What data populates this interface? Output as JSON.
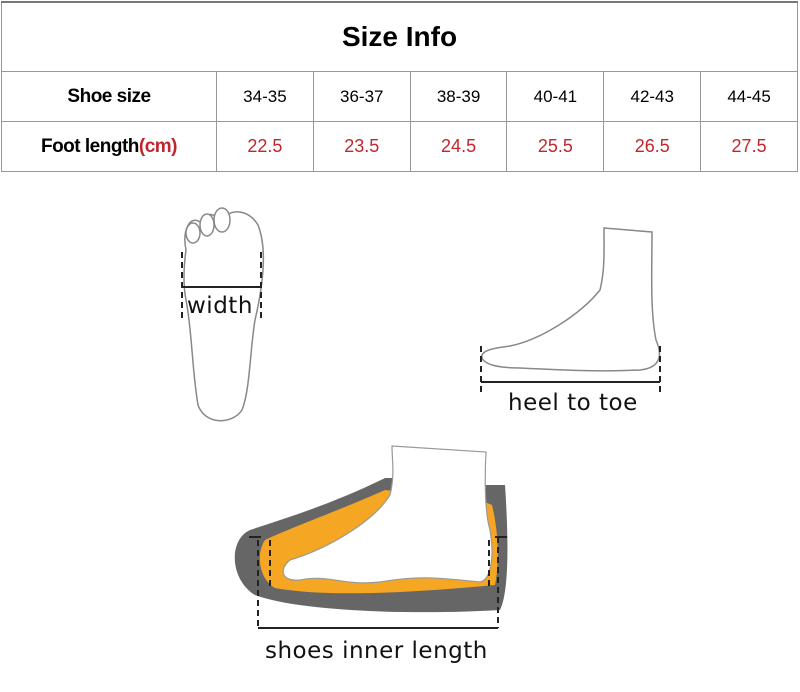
{
  "table": {
    "title": "Size Info",
    "row_labels": {
      "shoe_size": "Shoe size",
      "foot_length": "Foot length",
      "foot_length_unit": "(cm)"
    },
    "shoe_sizes": [
      "34-35",
      "36-37",
      "38-39",
      "40-41",
      "42-43",
      "44-45"
    ],
    "foot_lengths": [
      "22.5",
      "23.5",
      "24.5",
      "25.5",
      "26.5",
      "27.5"
    ]
  },
  "diagrams": {
    "width_label": "width",
    "heel_label": "heel to toe",
    "inner_label": "shoes inner length"
  },
  "colors": {
    "accent_red": "#c0272d",
    "insole_orange": "#f5a623",
    "sole_gray": "#666666"
  }
}
